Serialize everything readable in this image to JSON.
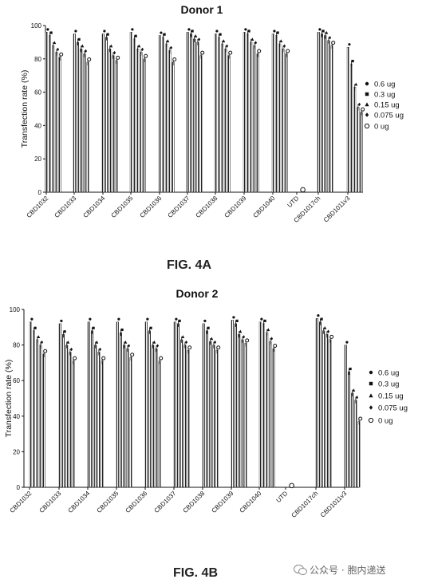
{
  "chart_data": [
    {
      "type": "bar",
      "title": "Donor 1",
      "figure_label": "FIG. 4A",
      "ylabel": "Transfection rate (%)",
      "ylim": [
        0,
        100
      ],
      "yticks": [
        "0",
        "20",
        "40",
        "60",
        "80",
        "100"
      ],
      "legend_position": "right",
      "categories": [
        "CBD1032",
        "CBD1033",
        "CBD1034",
        "CBD1035",
        "CBD1036",
        "CBD1037",
        "CBD1038",
        "CBD1039",
        "CBD1040",
        "UTD",
        "CBD1017ch",
        "CBD1011v3"
      ],
      "series": [
        {
          "name": "0.6 ug",
          "marker": "circle-filled",
          "values": [
            96,
            95,
            95,
            96,
            94,
            96,
            95,
            96,
            95,
            null,
            96,
            87
          ]
        },
        {
          "name": "0.3 ug",
          "marker": "square",
          "values": [
            94,
            90,
            93,
            92,
            93,
            95,
            93,
            95,
            94,
            null,
            95,
            77
          ]
        },
        {
          "name": "0.15 ug",
          "marker": "triangle",
          "values": [
            88,
            86,
            86,
            86,
            89,
            92,
            89,
            90,
            89,
            null,
            94,
            63
          ]
        },
        {
          "name": "0.075 ug",
          "marker": "diamond",
          "values": [
            84,
            83,
            82,
            84,
            85,
            90,
            86,
            88,
            86,
            null,
            91,
            51
          ]
        },
        {
          "name": "0 ug",
          "marker": "circle-open",
          "values": [
            81,
            78,
            79,
            80,
            78,
            82,
            82,
            83,
            83,
            1,
            88,
            48
          ]
        }
      ]
    },
    {
      "type": "bar",
      "title": "Donor 2",
      "figure_label": "FIG. 4B",
      "ylabel": "Transfection rate (%)",
      "ylim": [
        0,
        100
      ],
      "yticks": [
        "0",
        "20",
        "40",
        "60",
        "80",
        "100"
      ],
      "legend_position": "right",
      "categories": [
        "CBD1032",
        "CBD1033",
        "CBD1034",
        "CBD1035",
        "CBD1036",
        "CBD1037",
        "CBD1038",
        "CBD1039",
        "CBD1040",
        "UTD",
        "CBD1017ch",
        "CBD1011v3"
      ],
      "series": [
        {
          "name": "0.6 ug",
          "marker": "circle-filled",
          "values": [
            93,
            92,
            93,
            93,
            93,
            93,
            92,
            94,
            93,
            null,
            95,
            80
          ]
        },
        {
          "name": "0.3 ug",
          "marker": "square",
          "values": [
            88,
            86,
            88,
            87,
            88,
            92,
            88,
            92,
            92,
            null,
            93,
            65
          ]
        },
        {
          "name": "0.15 ug",
          "marker": "triangle",
          "values": [
            83,
            80,
            80,
            80,
            80,
            83,
            82,
            86,
            87,
            null,
            88,
            53
          ]
        },
        {
          "name": "0.075 ug",
          "marker": "diamond",
          "values": [
            80,
            76,
            76,
            78,
            78,
            80,
            80,
            83,
            82,
            null,
            86,
            49
          ]
        },
        {
          "name": "0 ug",
          "marker": "circle-open",
          "values": [
            75,
            71,
            71,
            73,
            71,
            77,
            77,
            81,
            78,
            0.5,
            83,
            37
          ]
        }
      ]
    }
  ],
  "watermark": "公众号 · 胞内递送"
}
